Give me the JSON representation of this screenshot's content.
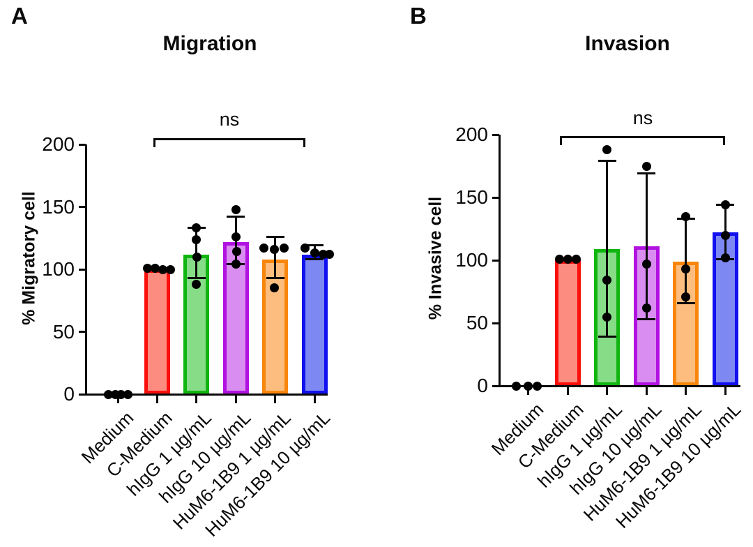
{
  "figure": {
    "background": "#ffffff",
    "text_color": "#0a0a0a",
    "dot_color": "#000000"
  },
  "chart_data": [
    {
      "type": "bar",
      "panel_letter": "A",
      "title": "Migration",
      "ylabel": "% Migratory cell",
      "xlabel": "",
      "ylim": [
        0,
        200
      ],
      "yticks": [
        0,
        50,
        100,
        150,
        200
      ],
      "grid": false,
      "legend": "none",
      "categories": [
        "Medium",
        "C-Medium",
        "hIgG 1 µg/mL",
        "hIgG 10 µg/mL",
        "HuM6-1B9 1 µg/mL",
        "HuM6-1B9 10 µg/mL"
      ],
      "values": [
        0,
        100,
        112,
        122,
        108,
        112
      ],
      "error_low": [
        null,
        null,
        93,
        104,
        93,
        108
      ],
      "error_high": [
        null,
        null,
        133,
        142,
        126,
        119
      ],
      "point_values": [
        [
          0,
          0,
          0,
          0
        ],
        [
          101,
          101,
          100,
          100
        ],
        [
          133,
          124,
          110,
          88
        ],
        [
          148,
          126,
          114,
          104
        ],
        [
          117,
          116,
          117,
          85
        ],
        [
          117,
          113,
          112,
          112
        ]
      ],
      "point_dx": [
        [
          -14,
          -4,
          4,
          14
        ],
        [
          -14,
          -3,
          8,
          19
        ],
        [
          0,
          0,
          1,
          0
        ],
        [
          0,
          0,
          1,
          0
        ],
        [
          -16,
          -1,
          13,
          -1
        ],
        [
          -14,
          0,
          12,
          21
        ]
      ],
      "bar_border_colors": [
        null,
        "#fb0f0b",
        "#10b510",
        "#b112e0",
        "#f8860c",
        "#1111ee"
      ],
      "bar_fill_colors": [
        null,
        "#fc8b80",
        "#87dc87",
        "#d98df0",
        "#fcbd7e",
        "#7e88f2"
      ],
      "significance": {
        "label": "ns",
        "from": "C-Medium",
        "to": "HuM6-1B9 10 µg/mL"
      }
    },
    {
      "type": "bar",
      "panel_letter": "B",
      "title": "Invasion",
      "ylabel": "% Invasive cell",
      "xlabel": "",
      "ylim": [
        0,
        200
      ],
      "yticks": [
        0,
        50,
        100,
        150,
        200
      ],
      "grid": false,
      "legend": "none",
      "categories": [
        "Medium",
        "C-Medium",
        "hIgG 1 µg/mL",
        "hIgG 10 µg/mL",
        "HuM6-1B9 1 µg/mL",
        "HuM6-1B9 10 µg/mL"
      ],
      "values": [
        0,
        100,
        109,
        111,
        99,
        122
      ],
      "error_low": [
        null,
        null,
        39,
        53,
        66,
        101
      ],
      "error_high": [
        null,
        null,
        179,
        169,
        133,
        144
      ],
      "point_values": [
        [
          0,
          0,
          0
        ],
        [
          101,
          101,
          101
        ],
        [
          188,
          84,
          55
        ],
        [
          175,
          97,
          62
        ],
        [
          135,
          93,
          71
        ],
        [
          144,
          120,
          102
        ]
      ],
      "point_dx": [
        [
          -17,
          0,
          13
        ],
        [
          -12,
          0,
          12
        ],
        [
          0,
          0,
          0
        ],
        [
          0,
          0,
          0
        ],
        [
          0,
          0,
          0
        ],
        [
          0,
          0,
          0
        ]
      ],
      "bar_border_colors": [
        null,
        "#fb0f0b",
        "#10b510",
        "#b112e0",
        "#f8860c",
        "#1111ee"
      ],
      "bar_fill_colors": [
        null,
        "#fc8b80",
        "#87dc87",
        "#d98df0",
        "#fcbd7e",
        "#7e88f2"
      ],
      "significance": {
        "label": "ns",
        "from": "C-Medium",
        "to": "HuM6-1B9 10 µg/mL"
      }
    }
  ]
}
